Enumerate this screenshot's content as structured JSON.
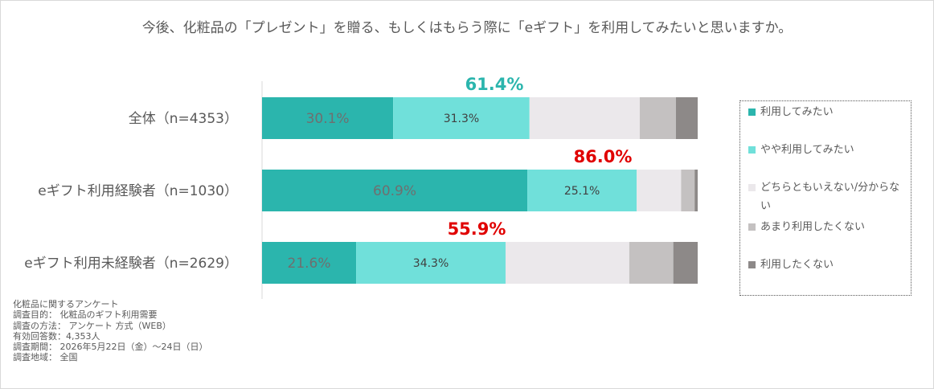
{
  "title": "今後、化粧品の「プレゼント」を贈る、もしくはもらう際に「eギフト」を利用してみたいと思いますか。",
  "chart_data": {
    "type": "bar",
    "orientation": "horizontal",
    "stacked": "percent",
    "categories": [
      "全体（n=4353）",
      "eギフト利用経験者（n=1030）",
      "eギフト利用未経験者（n=2629）"
    ],
    "series": [
      {
        "name": "利用してみたい",
        "values": [
          30.1,
          60.9,
          21.6
        ],
        "color": "#2bb5ad",
        "labels": [
          "30.1%",
          "60.9%",
          "21.6%"
        ]
      },
      {
        "name": "やや利用してみたい",
        "values": [
          31.3,
          25.1,
          34.3
        ],
        "color": "#70e0da",
        "labels": [
          "31.3%",
          "25.1%",
          "34.3%"
        ]
      },
      {
        "name": "どちらともいえない/分からない",
        "values": [
          25.3,
          10.2,
          28.4
        ],
        "color": "#ebe8eb",
        "labels": []
      },
      {
        "name": "あまり利用したくない",
        "values": [
          8.3,
          3.1,
          10.1
        ],
        "color": "#c4c1c1",
        "labels": []
      },
      {
        "name": "利用したくない",
        "values": [
          5.0,
          0.7,
          5.6
        ],
        "color": "#8d8988",
        "labels": []
      }
    ],
    "totals": [
      {
        "label": "61.4%",
        "color": "#2bb5ad"
      },
      {
        "label": "86.0%",
        "color": "#e00000"
      },
      {
        "label": "55.9%",
        "color": "#e00000"
      }
    ],
    "xlim": [
      0,
      100
    ],
    "legend": "right",
    "grid": false
  },
  "legend": {
    "items": [
      {
        "label": "利用してみたい",
        "color": "#2bb5ad"
      },
      {
        "label": "やや利用してみたい",
        "color": "#70e0da"
      },
      {
        "label": "どちらともいえない/分からない",
        "color": "#ebe8eb"
      },
      {
        "label": "あまり利用したくない",
        "color": "#c4c1c1"
      },
      {
        "label": "利用したくない",
        "color": "#8d8988"
      }
    ]
  },
  "notes": [
    "化粧品に関するアンケート",
    "調査目的： 化粧品のギフト利用需要",
    "調査の方法： アンケート 方式（WEB）",
    "有効回答数：4,353人",
    "調査期間： 2026年5月22日（金）～24日（日）",
    "調査地域： 全国"
  ]
}
